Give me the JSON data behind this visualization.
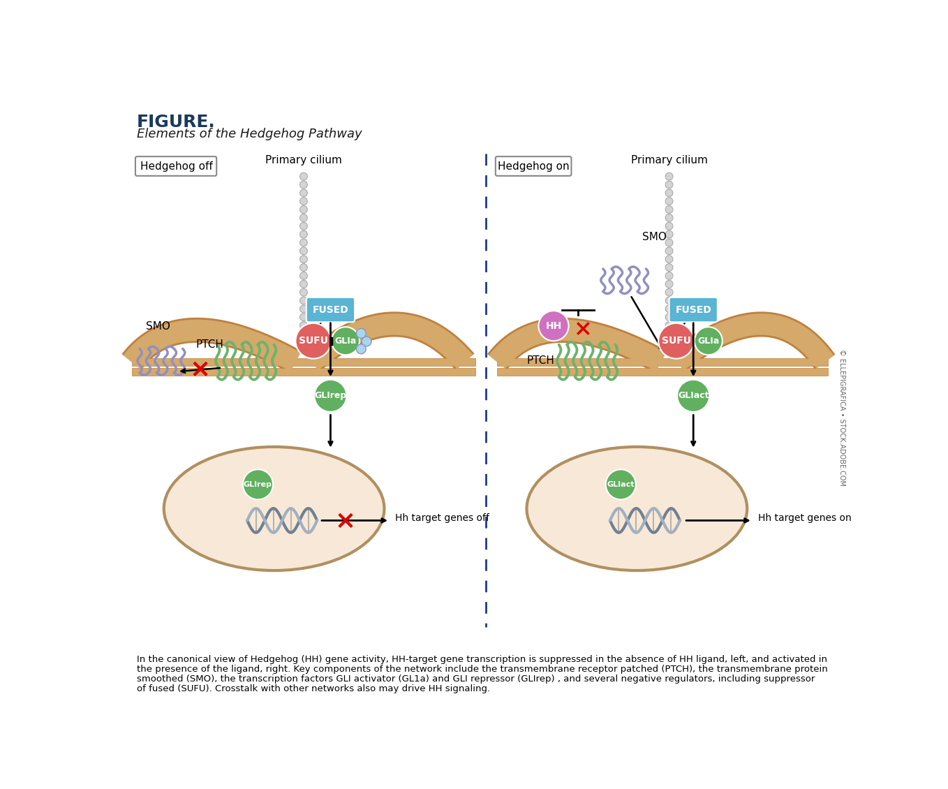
{
  "title": "FIGURE.",
  "subtitle": "Elements of the Hedgehog Pathway",
  "title_color": "#1a3a5c",
  "subtitle_color": "#1a1a1a",
  "background_color": "#ffffff",
  "dashed_line_color": "#1a3a8c",
  "membrane_color": "#d4a96a",
  "cilium_ball_color": "#d4d4d4",
  "cilium_ball_outline": "#aaaaaa",
  "ptch_color": "#6db36d",
  "smo_color": "#9090c0",
  "fused_color": "#5ab4d4",
  "sufu_color": "#e06060",
  "glia_color": "#60b060",
  "gli_ball_color": "#aad4f0",
  "glirep_circle_color": "#60b060",
  "hh_color": "#d070c0",
  "nucleus_fill": "#f8e8d8",
  "nucleus_border": "#b09060",
  "dna_color1": "#708090",
  "dna_color2": "#a0b0c0",
  "arrow_color": "#1a1a1a",
  "red_x_color": "#dd0000",
  "caption_hh_color": "#cc4400",
  "left_label": "Hedgehog off",
  "right_label": "Hedgehog on",
  "cilium_label": "Primary cilium",
  "ptch_label": "PTCH",
  "smo_label": "SMO",
  "fused_label": "FUSED",
  "sufu_label": "SUFU",
  "glia_label": "GLIa",
  "hh_label": "HH",
  "glirep_label": "GLIrep",
  "gliact_label": "GLIact",
  "hh_off_gene_label": "Hh target genes off",
  "hh_on_gene_label": "Hh target genes on",
  "caption_line1": "In the canonical view of Hedgehog (HH) gene activity, HH-target gene transcription is suppressed in the absence of HH ligand, left, and activated in",
  "caption_line2": "the presence of the ligand, right. Key components of the network include the transmembrane receptor patched (PTCH), the transmembrane protein",
  "caption_line3": "smoothed (SMO), the transcription factors GLI activator (GL1a) and GLI repressor (GLIrep) , and several negative regulators, including suppressor",
  "caption_line4": "of fused (SUFU). Crosstalk with other networks also may drive HH signaling.",
  "copyright": "© ELLEPIGRAFICA • STOCK.ADOBE.COM",
  "figsize": [
    13.58,
    11.3
  ],
  "dpi": 100
}
